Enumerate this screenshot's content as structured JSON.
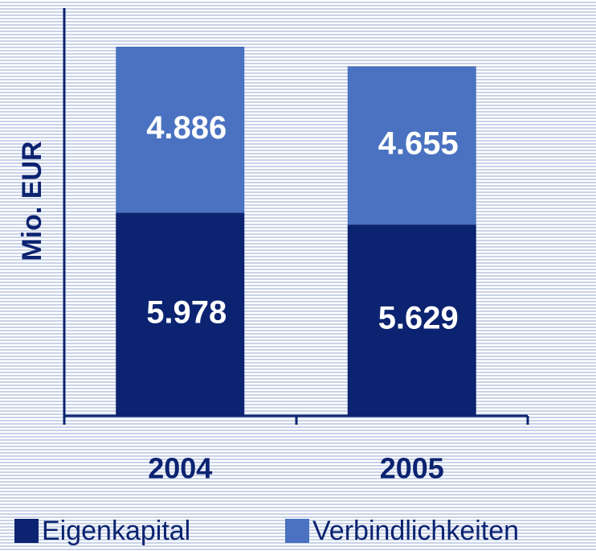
{
  "chart_data": {
    "type": "stacked_bar",
    "y_label": "Mio. EUR",
    "categories": [
      "2004",
      "2005"
    ],
    "series": [
      {
        "name": "Eigenkapital",
        "color": "#0b2370",
        "values": [
          5978,
          5629
        ],
        "value_labels": [
          "5.978",
          "5.629"
        ]
      },
      {
        "name": "Verbindlichkeiten",
        "color": "#4a72c0",
        "values": [
          4886,
          4655
        ],
        "value_labels": [
          "4.886",
          "4.655"
        ]
      }
    ],
    "ylim": [
      0,
      12000
    ]
  }
}
